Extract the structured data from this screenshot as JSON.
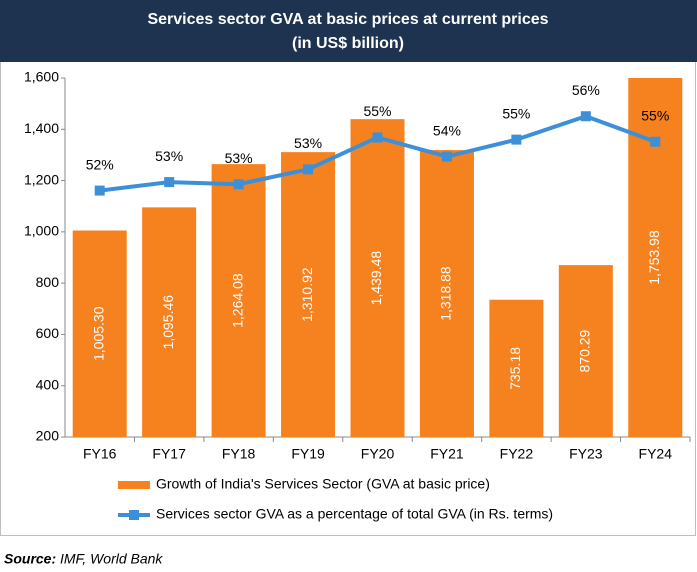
{
  "chart_data": {
    "type": "bar",
    "title": "Services sector GVA at basic prices at current prices",
    "subtitle": "(in US$ billion)",
    "categories": [
      "FY16",
      "FY17",
      "FY18",
      "FY19",
      "FY20",
      "FY21",
      "FY22",
      "FY23",
      "FY24"
    ],
    "series": [
      {
        "name": "Growth of India's Services Sector (GVA at basic price)",
        "type": "bar",
        "color": "#f5821f",
        "values": [
          1005.3,
          1095.46,
          1264.08,
          1310.92,
          1439.48,
          1318.88,
          735.18,
          870.29,
          1753.98
        ],
        "value_labels": [
          "1,005.30",
          "1,095.46",
          "1,264.08",
          "1,310.92",
          "1,439.48",
          "1,318.88",
          "735.18",
          "870.29",
          "1,753.98"
        ]
      },
      {
        "name": "Services sector GVA as a percentage of total GVA (in Rs. terms)",
        "type": "line",
        "axis": "y2",
        "color": "#3d8fd8",
        "values": [
          52.4,
          52.8,
          52.7,
          53.4,
          54.9,
          54.0,
          54.8,
          55.9,
          54.7
        ],
        "value_labels": [
          "52%",
          "53%",
          "53%",
          "53%",
          "55%",
          "54%",
          "55%",
          "56%",
          "55%"
        ]
      }
    ],
    "ylim": [
      200,
      1600
    ],
    "yticks": [
      200,
      400,
      600,
      800,
      {
        "value": 1000,
        "label": "1,000"
      },
      {
        "value": 1200,
        "label": "1,200"
      },
      {
        "value": 1400,
        "label": "1,400"
      },
      {
        "value": 1600,
        "label": "1,600"
      }
    ],
    "y2lim": [
      40.8,
      57.7
    ],
    "source_label": "Source:",
    "source": "IMF, World Bank"
  }
}
